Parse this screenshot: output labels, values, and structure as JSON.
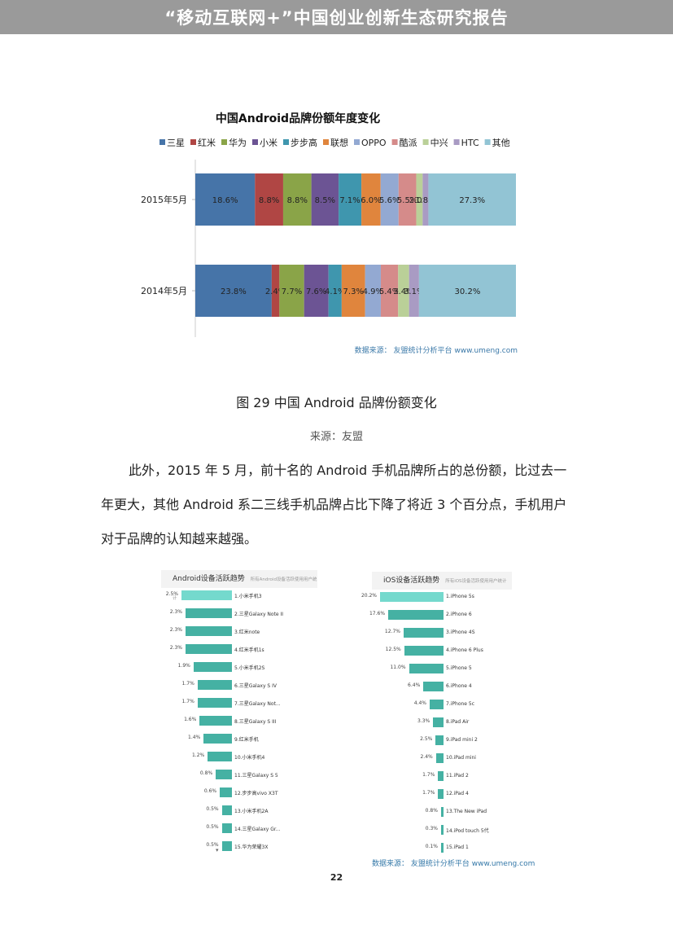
{
  "header": {
    "title": "“移动互联网+”中国创业创新生态研究报告"
  },
  "chart_data": [
    {
      "type": "bar",
      "orientation": "horizontal",
      "stacked": true,
      "title": "中国Android品牌份额年度变化",
      "legend_position": "top",
      "categories": [
        "2015年5月",
        "2014年5月"
      ],
      "series": [
        {
          "name": "三星",
          "color": "#4674a8",
          "values": [
            18.6,
            23.8
          ]
        },
        {
          "name": "红米",
          "color": "#b04644",
          "values": [
            8.8,
            2.4
          ]
        },
        {
          "name": "华为",
          "color": "#8aa448",
          "values": [
            8.8,
            7.7
          ]
        },
        {
          "name": "小米",
          "color": "#6c5494",
          "values": [
            8.5,
            7.6
          ]
        },
        {
          "name": "步步高",
          "color": "#3f96ae",
          "values": [
            7.1,
            4.1
          ]
        },
        {
          "name": "联想",
          "color": "#e0853d",
          "values": [
            6.0,
            7.3
          ]
        },
        {
          "name": "OPPO",
          "color": "#93a9d2",
          "values": [
            5.6,
            4.9
          ]
        },
        {
          "name": "酷派",
          "color": "#d58b8a",
          "values": [
            5.5,
            5.4
          ]
        },
        {
          "name": "中兴",
          "color": "#bad098",
          "values": [
            2.0,
            3.4
          ]
        },
        {
          "name": "HTC",
          "color": "#a99bc3",
          "values": [
            1.8,
            3.1
          ]
        },
        {
          "name": "其他",
          "color": "#92c4d4",
          "values": [
            27.3,
            30.2
          ]
        }
      ],
      "value_labels": [
        [
          "18.6%",
          "8.8%",
          "8.8%",
          "8.5%",
          "7.1%",
          "6.0%",
          "5.6%",
          "5.5%",
          "2.0%",
          "1.8%",
          "27.3%"
        ],
        [
          "23.8%",
          "2.4%",
          "7.7%",
          "7.6%",
          "4.1%",
          "7.3%",
          "4.9%",
          "5.4%",
          "3.4%",
          "3.1%",
          "30.2%"
        ]
      ],
      "source": "数据来源： 友盟统计分析平台 www.umeng.com"
    },
    {
      "type": "bar",
      "orientation": "horizontal",
      "title": "Android设备活跃趋势",
      "subtitle": "所有Android设备活跃使用用户统计",
      "categories": [
        "1.小米手机3",
        "2.三星Galaxy Note II",
        "3.红米note",
        "4.红米手机1s",
        "5.小米手机2S",
        "6.三星Galaxy S IV",
        "7.三星Galaxy Not...",
        "8.三星Galaxy S III",
        "9.红米手机",
        "10.小米手机4",
        "11.三星Galaxy S 5",
        "12.步步高vivo X3T",
        "13.小米手机2A",
        "14.三星Galaxy Gr...",
        "15.华为荣耀3X"
      ],
      "values": [
        2.5,
        2.3,
        2.3,
        2.3,
        1.9,
        1.7,
        1.7,
        1.6,
        1.4,
        1.2,
        0.8,
        0.6,
        0.5,
        0.5,
        0.5
      ],
      "labels": [
        "2.5%",
        "2.3%",
        "2.3%",
        "2.3%",
        "1.9%",
        "1.7%",
        "1.7%",
        "1.6%",
        "1.4%",
        "1.2%",
        "0.8%",
        "0.6%",
        "0.5%",
        "0.5%",
        "0.5%"
      ]
    },
    {
      "type": "bar",
      "orientation": "horizontal",
      "title": "iOS设备活跃趋势",
      "subtitle": "所有iOS设备活跃使用用户统计",
      "categories": [
        "1.iPhone 5s",
        "2.iPhone 6",
        "3.iPhone 4S",
        "4.iPhone 6 Plus",
        "5.iPhone 5",
        "6.iPhone 4",
        "7.iPhone 5c",
        "8.iPad Air",
        "9.iPad mini 2",
        "10.iPad mini",
        "11.iPad 2",
        "12.iPad 4",
        "13.The New iPad",
        "14.iPod touch 5代",
        "15.iPad 1"
      ],
      "values": [
        20.2,
        17.6,
        12.7,
        12.5,
        11.0,
        6.4,
        4.4,
        3.3,
        2.5,
        2.4,
        1.7,
        1.7,
        0.8,
        0.3,
        0.1
      ],
      "labels": [
        "20.2%",
        "17.6%",
        "12.7%",
        "12.5%",
        "11.0%",
        "6.4%",
        "4.4%",
        "3.3%",
        "2.5%",
        "2.4%",
        "1.7%",
        "1.7%",
        "0.8%",
        "0.3%",
        "0.1%"
      ],
      "source": "数据来源： 友盟统计分析平台 www.umeng.com"
    }
  ],
  "figure": {
    "caption": "图 29  中国 Android 品牌份额变化",
    "source": "来源：友盟"
  },
  "paragraph": "此外，2015 年 5 月，前十名的 Android 手机品牌所占的总份额，比过去一年更大，其他 Android 系二三线手机品牌占比下降了将近 3 个百分点，手机用户对于品牌的认知越来越强。",
  "more_icon": "▾",
  "page_number": "22"
}
